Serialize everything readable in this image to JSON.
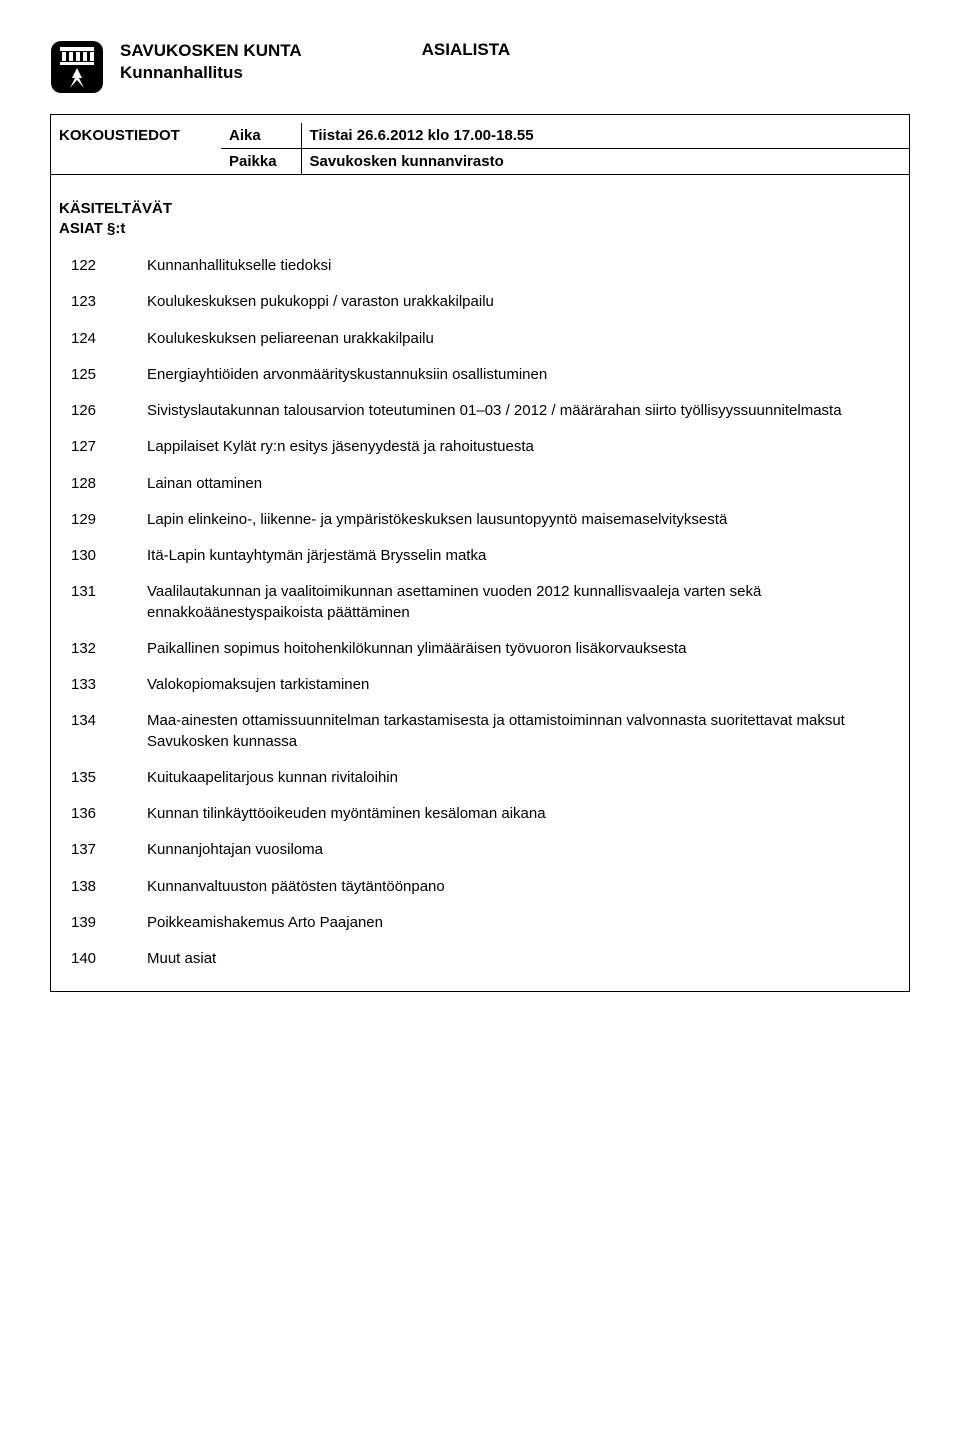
{
  "header": {
    "org": "SAVUKOSKEN KUNTA",
    "board": "Kunnanhallitus",
    "doc_type": "ASIALISTA"
  },
  "meeting": {
    "info_label": "KOKOUSTIEDOT",
    "time_label": "Aika",
    "time_value": "Tiistai 26.6.2012 klo 17.00-18.55",
    "place_label": "Paikka",
    "place_value": "Savukosken kunnanvirasto"
  },
  "section_label_line1": "KÄSITELTÄVÄT",
  "section_label_line2": "ASIAT §:t",
  "items": [
    {
      "num": "122",
      "text": "Kunnanhallitukselle tiedoksi"
    },
    {
      "num": "123",
      "text": "Koulukeskuksen pukukoppi / varaston urakkakilpailu"
    },
    {
      "num": "124",
      "text": "Koulukeskuksen peliareenan urakkakilpailu"
    },
    {
      "num": "125",
      "text": "Energiayhtiöiden arvonmäärityskustannuksiin osallistuminen"
    },
    {
      "num": "126",
      "text": "Sivistyslautakunnan talousarvion toteutuminen 01–03 / 2012 / määrärahan siirto työllisyyssuunnitelmasta"
    },
    {
      "num": "127",
      "text": "Lappilaiset Kylät ry:n esitys jäsenyydestä ja rahoitustuesta"
    },
    {
      "num": "128",
      "text": "Lainan ottaminen"
    },
    {
      "num": "129",
      "text": "Lapin elinkeino-, liikenne- ja ympäristökeskuksen lausuntopyyntö maisemaselvityksestä"
    },
    {
      "num": "130",
      "text": "Itä-Lapin kuntayhtymän järjestämä Brysselin matka"
    },
    {
      "num": "131",
      "text": "Vaalilautakunnan ja vaalitoimikunnan asettaminen vuoden 2012 kunnallisvaaleja varten sekä ennakkoäänestyspaikoista päättäminen"
    },
    {
      "num": "132",
      "text": "Paikallinen sopimus hoitohenkilökunnan ylimääräisen työvuoron lisäkorvauksesta"
    },
    {
      "num": "133",
      "text": "Valokopiomaksujen tarkistaminen"
    },
    {
      "num": "134",
      "text": "Maa-ainesten ottamissuunnitelman tarkastamisesta ja ottamistoiminnan valvonnasta suoritettavat maksut Savukosken kunnassa"
    },
    {
      "num": "135",
      "text": "Kuitukaapelitarjous kunnan rivitaloihin"
    },
    {
      "num": "136",
      "text": "Kunnan tilinkäyttöoikeuden myöntäminen kesäloman aikana"
    },
    {
      "num": "137",
      "text": "Kunnanjohtajan vuosiloma"
    },
    {
      "num": "138",
      "text": "Kunnanvaltuuston päätösten täytäntöönpano"
    },
    {
      "num": "139",
      "text": "Poikkeamishakemus Arto Paajanen"
    },
    {
      "num": "140",
      "text": "Muut asiat"
    }
  ],
  "colors": {
    "text": "#000000",
    "background": "#ffffff",
    "border": "#000000"
  },
  "typography": {
    "font_family": "Arial",
    "heading_size_pt": 13,
    "body_size_pt": 11
  }
}
